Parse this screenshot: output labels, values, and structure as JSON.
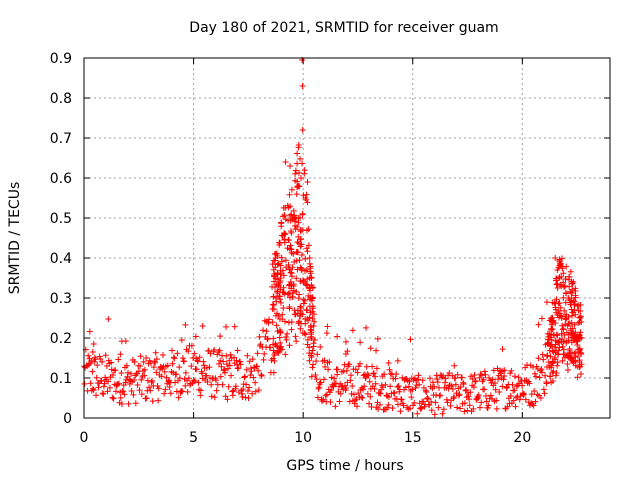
{
  "chart_data": {
    "type": "scatter",
    "title": "Day 180 of 2021, SRMTID for receiver guam",
    "xlabel": "GPS time / hours",
    "ylabel": "SRMTID / TECUs",
    "xlim": [
      0,
      24
    ],
    "ylim": [
      0,
      0.9
    ],
    "xticks": [
      0,
      5,
      10,
      15,
      20
    ],
    "yticks": [
      0,
      0.1,
      0.2,
      0.3,
      0.4,
      0.5,
      0.6,
      0.7,
      0.8,
      0.9
    ],
    "xtick_labels": [
      "0",
      "5",
      "10",
      "15",
      "20"
    ],
    "ytick_labels": [
      "0",
      "0.1",
      "0.2",
      "0.3",
      "0.4",
      "0.5",
      "0.6",
      "0.7",
      "0.8",
      "0.9"
    ],
    "grid": true,
    "marker": "+",
    "color": "#ff0000",
    "series": [
      {
        "name": "SRMTID",
        "profile": [
          [
            0.0,
            0.11
          ],
          [
            1.0,
            0.1
          ],
          [
            2.0,
            0.09
          ],
          [
            3.0,
            0.1
          ],
          [
            4.0,
            0.11
          ],
          [
            5.0,
            0.12
          ],
          [
            6.0,
            0.11
          ],
          [
            7.0,
            0.1
          ],
          [
            7.8,
            0.11
          ],
          [
            8.2,
            0.16
          ],
          [
            8.6,
            0.24
          ],
          [
            9.0,
            0.3
          ],
          [
            9.4,
            0.36
          ],
          [
            9.8,
            0.42
          ],
          [
            10.1,
            0.38
          ],
          [
            10.4,
            0.22
          ],
          [
            10.7,
            0.1
          ],
          [
            11.5,
            0.08
          ],
          [
            12.5,
            0.085
          ],
          [
            13.5,
            0.075
          ],
          [
            14.5,
            0.065
          ],
          [
            15.5,
            0.055
          ],
          [
            16.5,
            0.06
          ],
          [
            17.5,
            0.06
          ],
          [
            18.5,
            0.07
          ],
          [
            19.5,
            0.08
          ],
          [
            20.5,
            0.085
          ],
          [
            21.0,
            0.12
          ],
          [
            21.4,
            0.2
          ],
          [
            21.7,
            0.28
          ],
          [
            22.0,
            0.26
          ],
          [
            22.4,
            0.22
          ],
          [
            22.7,
            0.18
          ]
        ],
        "peaks": [
          [
            9.95,
            0.895
          ],
          [
            9.97,
            0.83
          ],
          [
            9.98,
            0.72
          ],
          [
            9.2,
            0.64
          ],
          [
            9.4,
            0.63
          ],
          [
            9.9,
            0.6
          ],
          [
            10.2,
            0.59
          ],
          [
            10.1,
            0.55
          ],
          [
            9.6,
            0.5
          ],
          [
            10.3,
            0.4
          ],
          [
            21.5,
            0.4
          ],
          [
            21.7,
            0.39
          ],
          [
            21.6,
            0.37
          ],
          [
            21.95,
            0.33
          ],
          [
            22.1,
            0.3
          ]
        ]
      }
    ]
  }
}
